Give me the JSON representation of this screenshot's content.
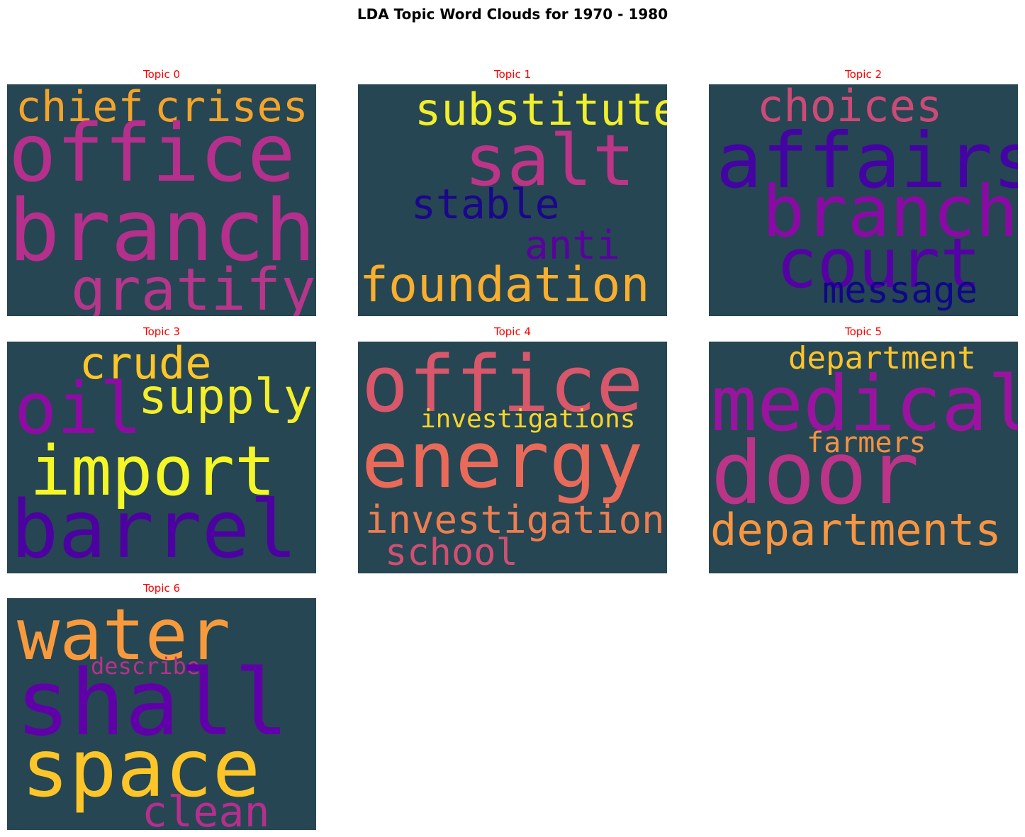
{
  "title": "LDA Topic Word Clouds for 1970 - 1980",
  "background_color": "#264653",
  "topics": [
    {
      "label": "Topic 0",
      "words": [
        {
          "text": "chief",
          "color": "#f5a42a"
        },
        {
          "text": "crises",
          "color": "#f5a42a"
        },
        {
          "text": "office",
          "color": "#b52f8c"
        },
        {
          "text": "branch",
          "color": "#b52f8c"
        },
        {
          "text": "gratify",
          "color": "#b5368a"
        }
      ]
    },
    {
      "label": "Topic 1",
      "words": [
        {
          "text": "substitute",
          "color": "#f1ee2b"
        },
        {
          "text": "salt",
          "color": "#bc3587"
        },
        {
          "text": "stable",
          "color": "#1a078a"
        },
        {
          "text": "anti",
          "color": "#5a019f"
        },
        {
          "text": "foundation",
          "color": "#f9ae2e"
        }
      ]
    },
    {
      "label": "Topic 2",
      "words": [
        {
          "text": "choices",
          "color": "#cd4a76"
        },
        {
          "text": "affairs",
          "color": "#4403a3"
        },
        {
          "text": "branch",
          "color": "#8b0aa5"
        },
        {
          "text": "court",
          "color": "#5402a3"
        },
        {
          "text": "message",
          "color": "#100788"
        }
      ]
    },
    {
      "label": "Topic 3",
      "words": [
        {
          "text": "crude",
          "color": "#fdc527"
        },
        {
          "text": "supply",
          "color": "#f4ef2a"
        },
        {
          "text": "oil",
          "color": "#8e0ca4"
        },
        {
          "text": "import",
          "color": "#f4f626"
        },
        {
          "text": "barrel",
          "color": "#4c02a1"
        }
      ]
    },
    {
      "label": "Topic 4",
      "words": [
        {
          "text": "office",
          "color": "#d8576b"
        },
        {
          "text": "investigations",
          "color": "#f8d52a"
        },
        {
          "text": "energy",
          "color": "#ea6a5a"
        },
        {
          "text": "investigation",
          "color": "#ee7d4f"
        },
        {
          "text": "school",
          "color": "#d24f71"
        }
      ]
    },
    {
      "label": "Topic 5",
      "words": [
        {
          "text": "department",
          "color": "#fdc42a"
        },
        {
          "text": "medical",
          "color": "#9a14a0"
        },
        {
          "text": "farmers",
          "color": "#f29144"
        },
        {
          "text": "door",
          "color": "#bb3488"
        },
        {
          "text": "departments",
          "color": "#f89540"
        }
      ]
    },
    {
      "label": "Topic 6",
      "words": [
        {
          "text": "water",
          "color": "#f89a3c"
        },
        {
          "text": "describe",
          "color": "#b83289"
        },
        {
          "text": "shall",
          "color": "#6000a8"
        },
        {
          "text": "space",
          "color": "#fdc527"
        },
        {
          "text": "clean",
          "color": "#b52f8c"
        }
      ]
    }
  ]
}
